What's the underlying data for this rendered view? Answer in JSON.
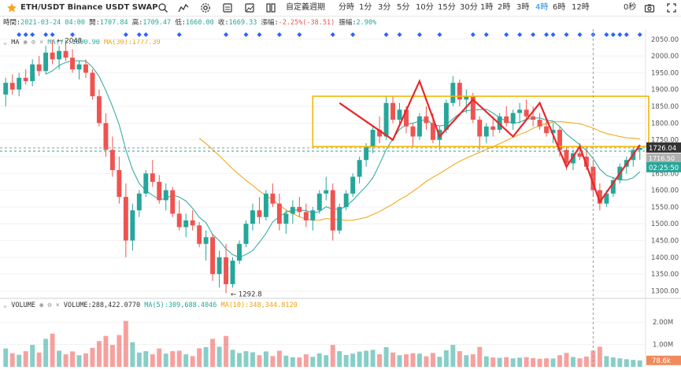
{
  "toolbar": {
    "symbol": "ETH/USDT  Binance USDT SWAP",
    "interval_menu": "自定義週期",
    "timeframes": [
      "分時",
      "1分",
      "3分",
      "5分",
      "10分",
      "15分",
      "30分",
      "1時",
      "2時",
      "3時",
      "4時",
      "6時",
      "12時"
    ],
    "active_timeframe": "4時",
    "seconds": "0秒"
  },
  "ohlc": {
    "time_label": "時間:",
    "time": "2021-03-24 04:00",
    "open_label": "開:",
    "open": "1707.84",
    "high_label": "高:",
    "high": "1709.47",
    "low_label": "低:",
    "low": "1660.00",
    "close_label": "收:",
    "close": "1669.33",
    "change_label": "漲幅:",
    "change": "-2.25%(-38.51)",
    "amp_label": "振幅:",
    "amp": "2.90%"
  },
  "ma_legend": {
    "name": "MA",
    "ma7": "MA(7):1690.90",
    "ma30": "MA(30):1777.39"
  },
  "vol_legend": {
    "name": "VOLUME",
    "value": "VOLUME:288,422.0770",
    "ma5": "MA(5):309,688.4046",
    "ma10": "MA(10):348,344.8120"
  },
  "price_axis": {
    "ticks": [
      "2050.00",
      "2000.00",
      "1950.00",
      "1900.00",
      "1850.00",
      "1800.00",
      "1750.00",
      "1700.00",
      "1650.00",
      "1600.00",
      "1550.00",
      "1500.00",
      "1450.00",
      "1400.00",
      "1350.00",
      "1300.00"
    ],
    "last_price": "1726.04",
    "countdown": "02:25:50",
    "hidden_label": "1716.50"
  },
  "volume_axis": {
    "ticks": [
      "2.00M",
      "1.00M"
    ],
    "last_volume": "78.6k"
  },
  "annotations": {
    "high": "2048",
    "low": "1292.8"
  },
  "colors": {
    "up": "#26a69a",
    "down": "#ef5350",
    "ma7": "#26a69a",
    "ma30": "#f0a30a",
    "accent": "#1e88e5",
    "drawing_line": "#e8272b",
    "drawing_box": "#f2b705",
    "marker": "#2962ff"
  },
  "chart_data": {
    "type": "candlestick",
    "title": "ETH/USDT Binance USDT SWAP",
    "interval": "4時",
    "ylim": [
      1280,
      2080
    ],
    "volume_ylim": [
      0,
      2600000
    ],
    "ohlc": [
      [
        1885,
        1935,
        1850,
        1920
      ],
      [
        1920,
        1945,
        1885,
        1900
      ],
      [
        1900,
        1950,
        1880,
        1935
      ],
      [
        1935,
        1960,
        1915,
        1925
      ],
      [
        1925,
        1990,
        1910,
        1975
      ],
      [
        1975,
        2000,
        1940,
        1955
      ],
      [
        1955,
        2030,
        1945,
        2010
      ],
      [
        2010,
        2048,
        1975,
        1990
      ],
      [
        1990,
        2030,
        1960,
        2015
      ],
      [
        2015,
        2040,
        1985,
        1995
      ],
      [
        1995,
        2020,
        1950,
        1960
      ],
      [
        1960,
        1985,
        1930,
        1975
      ],
      [
        1975,
        1990,
        1935,
        1950
      ],
      [
        1950,
        1960,
        1870,
        1880
      ],
      [
        1880,
        1900,
        1790,
        1800
      ],
      [
        1800,
        1830,
        1700,
        1720
      ],
      [
        1720,
        1760,
        1640,
        1660
      ],
      [
        1660,
        1700,
        1560,
        1580
      ],
      [
        1580,
        1620,
        1400,
        1450
      ],
      [
        1450,
        1560,
        1420,
        1540
      ],
      [
        1540,
        1600,
        1520,
        1590
      ],
      [
        1590,
        1660,
        1580,
        1650
      ],
      [
        1650,
        1690,
        1610,
        1625
      ],
      [
        1625,
        1645,
        1560,
        1570
      ],
      [
        1570,
        1620,
        1540,
        1600
      ],
      [
        1600,
        1610,
        1520,
        1530
      ],
      [
        1530,
        1570,
        1480,
        1490
      ],
      [
        1490,
        1530,
        1460,
        1510
      ],
      [
        1510,
        1540,
        1480,
        1495
      ],
      [
        1495,
        1505,
        1430,
        1440
      ],
      [
        1440,
        1480,
        1390,
        1460
      ],
      [
        1460,
        1470,
        1330,
        1350
      ],
      [
        1350,
        1420,
        1310,
        1400
      ],
      [
        1400,
        1440,
        1293,
        1320
      ],
      [
        1320,
        1400,
        1310,
        1390
      ],
      [
        1390,
        1450,
        1380,
        1440
      ],
      [
        1440,
        1510,
        1430,
        1500
      ],
      [
        1500,
        1560,
        1480,
        1540
      ],
      [
        1540,
        1580,
        1500,
        1520
      ],
      [
        1520,
        1600,
        1510,
        1590
      ],
      [
        1590,
        1620,
        1550,
        1560
      ],
      [
        1560,
        1590,
        1480,
        1500
      ],
      [
        1500,
        1540,
        1470,
        1530
      ],
      [
        1530,
        1570,
        1500,
        1550
      ],
      [
        1550,
        1580,
        1520,
        1535
      ],
      [
        1535,
        1560,
        1490,
        1510
      ],
      [
        1510,
        1550,
        1480,
        1540
      ],
      [
        1540,
        1600,
        1530,
        1590
      ],
      [
        1590,
        1640,
        1570,
        1600
      ],
      [
        1600,
        1620,
        1450,
        1480
      ],
      [
        1480,
        1560,
        1470,
        1550
      ],
      [
        1550,
        1600,
        1540,
        1590
      ],
      [
        1590,
        1650,
        1580,
        1640
      ],
      [
        1640,
        1700,
        1620,
        1690
      ],
      [
        1690,
        1740,
        1670,
        1730
      ],
      [
        1730,
        1790,
        1710,
        1780
      ],
      [
        1780,
        1820,
        1740,
        1760
      ],
      [
        1760,
        1880,
        1750,
        1860
      ],
      [
        1860,
        1880,
        1800,
        1810
      ],
      [
        1810,
        1860,
        1790,
        1840
      ],
      [
        1840,
        1850,
        1770,
        1790
      ],
      [
        1790,
        1800,
        1730,
        1760
      ],
      [
        1760,
        1830,
        1750,
        1820
      ],
      [
        1820,
        1850,
        1780,
        1800
      ],
      [
        1800,
        1830,
        1740,
        1750
      ],
      [
        1750,
        1790,
        1720,
        1780
      ],
      [
        1780,
        1870,
        1770,
        1860
      ],
      [
        1860,
        1940,
        1850,
        1920
      ],
      [
        1920,
        1930,
        1850,
        1870
      ],
      [
        1870,
        1900,
        1830,
        1880
      ],
      [
        1880,
        1890,
        1800,
        1810
      ],
      [
        1810,
        1820,
        1720,
        1760
      ],
      [
        1760,
        1800,
        1740,
        1790
      ],
      [
        1790,
        1820,
        1760,
        1780
      ],
      [
        1780,
        1830,
        1770,
        1820
      ],
      [
        1820,
        1850,
        1790,
        1800
      ],
      [
        1800,
        1840,
        1780,
        1830
      ],
      [
        1830,
        1860,
        1800,
        1840
      ],
      [
        1840,
        1870,
        1810,
        1820
      ],
      [
        1820,
        1850,
        1790,
        1810
      ],
      [
        1810,
        1830,
        1780,
        1790
      ],
      [
        1790,
        1810,
        1760,
        1770
      ],
      [
        1770,
        1800,
        1740,
        1780
      ],
      [
        1780,
        1790,
        1700,
        1720
      ],
      [
        1720,
        1730,
        1660,
        1680
      ],
      [
        1680,
        1720,
        1660,
        1710
      ],
      [
        1710,
        1740,
        1690,
        1700
      ],
      [
        1700,
        1730,
        1660,
        1670
      ],
      [
        1670,
        1690,
        1580,
        1600
      ],
      [
        1600,
        1620,
        1540,
        1560
      ],
      [
        1560,
        1600,
        1550,
        1590
      ],
      [
        1590,
        1640,
        1580,
        1630
      ],
      [
        1630,
        1680,
        1620,
        1670
      ],
      [
        1670,
        1700,
        1650,
        1690
      ],
      [
        1690,
        1730,
        1670,
        1720
      ],
      [
        1720,
        1735,
        1690,
        1726
      ]
    ],
    "volume": [
      820000,
      610000,
      540000,
      700000,
      980000,
      640000,
      1250000,
      1480000,
      720000,
      560000,
      690000,
      520000,
      600000,
      850000,
      1150000,
      1380000,
      980000,
      1420000,
      2050000,
      1100000,
      640000,
      700000,
      560000,
      820000,
      590000,
      700000,
      720000,
      560000,
      480000,
      830000,
      880000,
      1250000,
      900000,
      1380000,
      760000,
      620000,
      700000,
      650000,
      520000,
      690000,
      480000,
      720000,
      500000,
      430000,
      420000,
      560000,
      450000,
      600000,
      520000,
      980000,
      700000,
      530000,
      590000,
      680000,
      720000,
      760000,
      560000,
      880000,
      640000,
      520000,
      560000,
      610000,
      590000,
      470000,
      620000,
      450000,
      740000,
      980000,
      700000,
      520000,
      560000,
      890000,
      470000,
      420000,
      400000,
      430000,
      380000,
      410000,
      430000,
      390000,
      360000,
      380000,
      370000,
      520000,
      620000,
      440000,
      380000,
      460000,
      720000,
      900000,
      480000,
      420000,
      380000,
      340000,
      310000,
      288422
    ]
  }
}
